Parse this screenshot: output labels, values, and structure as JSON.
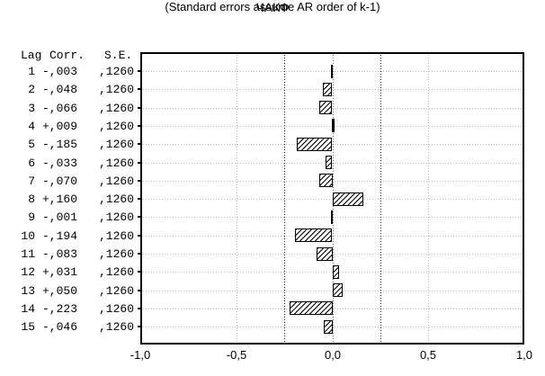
{
  "title": "ЧАКФ",
  "subtitle": "(Standard errors assume AR order of k-1)",
  "table": {
    "header": {
      "lag": "Lag",
      "corr": "Corr.",
      "se": "S.E."
    },
    "rows": [
      {
        "lag": "1",
        "corr": "-,003",
        "se": ",1260"
      },
      {
        "lag": "2",
        "corr": "-,048",
        "se": ",1260"
      },
      {
        "lag": "3",
        "corr": "-,066",
        "se": ",1260"
      },
      {
        "lag": "4",
        "corr": "+,009",
        "se": ",1260"
      },
      {
        "lag": "5",
        "corr": "-,185",
        "se": ",1260"
      },
      {
        "lag": "6",
        "corr": "-,033",
        "se": ",1260"
      },
      {
        "lag": "7",
        "corr": "-,070",
        "se": ",1260"
      },
      {
        "lag": "8",
        "corr": "+,160",
        "se": ",1260"
      },
      {
        "lag": "9",
        "corr": "-,001",
        "se": ",1260"
      },
      {
        "lag": "10",
        "corr": "-,194",
        "se": ",1260"
      },
      {
        "lag": "11",
        "corr": "-,083",
        "se": ",1260"
      },
      {
        "lag": "12",
        "corr": "+,031",
        "se": ",1260"
      },
      {
        "lag": "13",
        "corr": "+,050",
        "se": ",1260"
      },
      {
        "lag": "14",
        "corr": "-,223",
        "se": ",1260"
      },
      {
        "lag": "15",
        "corr": "-,046",
        "se": ",1260"
      }
    ]
  },
  "chart_data": {
    "type": "bar",
    "orientation": "horizontal",
    "title": "ЧАКФ",
    "subtitle": "(Standard errors assume AR order of k-1)",
    "categories": [
      1,
      2,
      3,
      4,
      5,
      6,
      7,
      8,
      9,
      10,
      11,
      12,
      13,
      14,
      15
    ],
    "values": [
      -0.003,
      -0.048,
      -0.066,
      0.009,
      -0.185,
      -0.033,
      -0.07,
      0.16,
      -0.001,
      -0.194,
      -0.083,
      0.031,
      0.05,
      -0.223,
      -0.046
    ],
    "standard_error": 0.126,
    "confidence_lines": [
      -0.252,
      0.252
    ],
    "zero_line": 0.0,
    "xlim": [
      -1.0,
      1.0
    ],
    "x_ticks": [
      -1.0,
      -0.5,
      0.0,
      0.5,
      1.0
    ],
    "x_tick_labels": [
      "-1,0",
      "-0,5",
      "0,0",
      "0,5",
      "1,0"
    ],
    "grid_x_ticks": [
      -0.5,
      0.5
    ],
    "grid": true,
    "legend": false
  },
  "colors": {
    "background": "#ffffff",
    "frame": "#000000",
    "grid": "#b9b9b9",
    "zero_line": "#707070",
    "confidence_line": "#222222",
    "bar_fill": "#ffffff",
    "bar_hatch": "#000000",
    "text": "#000000"
  }
}
